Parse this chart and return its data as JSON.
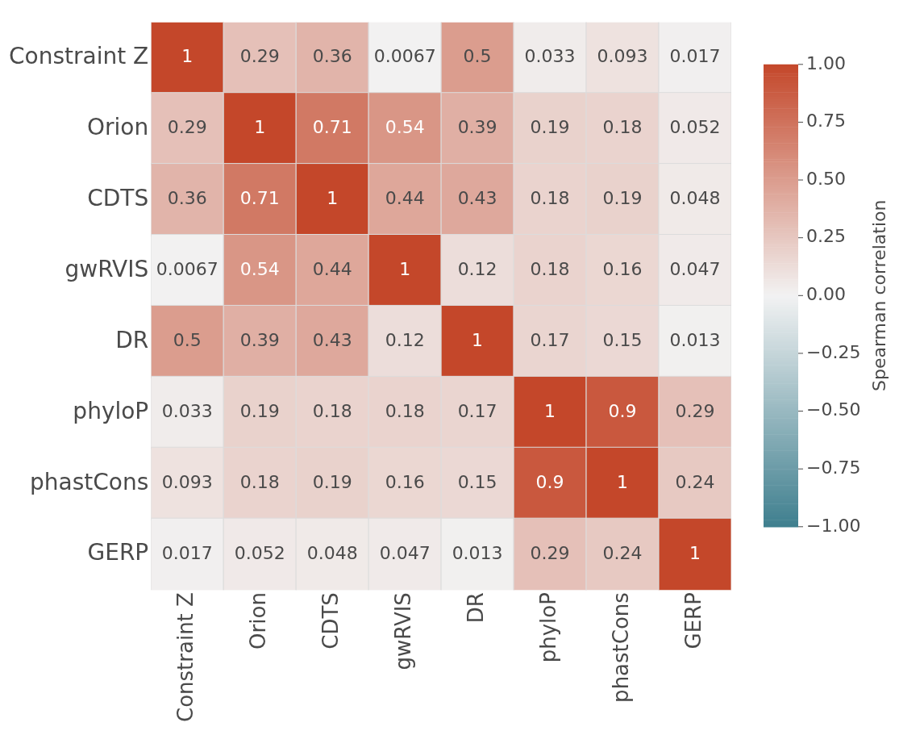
{
  "chart_data": {
    "type": "heatmap",
    "categories": [
      "Constraint Z",
      "Orion",
      "CDTS",
      "gwRVIS",
      "DR",
      "phyloP",
      "phastCons",
      "GERP"
    ],
    "y_categories": [
      "Constraint Z",
      "Orion",
      "CDTS",
      "gwRVIS",
      "DR",
      "phyloP",
      "phastCons",
      "GERP"
    ],
    "cells": [
      [
        1,
        0.29,
        0.36,
        0.0067,
        0.5,
        0.033,
        0.093,
        0.017
      ],
      [
        0.29,
        1,
        0.71,
        0.54,
        0.39,
        0.19,
        0.18,
        0.052
      ],
      [
        0.36,
        0.71,
        1,
        0.44,
        0.43,
        0.18,
        0.19,
        0.048
      ],
      [
        0.0067,
        0.54,
        0.44,
        1,
        0.12,
        0.18,
        0.16,
        0.047
      ],
      [
        0.5,
        0.39,
        0.43,
        0.12,
        1,
        0.17,
        0.15,
        0.013
      ],
      [
        0.033,
        0.19,
        0.18,
        0.18,
        0.17,
        1,
        0.9,
        0.29
      ],
      [
        0.093,
        0.18,
        0.19,
        0.16,
        0.15,
        0.9,
        1,
        0.24
      ],
      [
        0.017,
        0.052,
        0.048,
        0.047,
        0.013,
        0.29,
        0.24,
        1
      ]
    ],
    "data_labels": true,
    "clim": [
      -1,
      1
    ],
    "cticks": [
      {
        "value": 1,
        "label": "1.00"
      },
      {
        "value": 0.75,
        "label": "0.75"
      },
      {
        "value": 0.5,
        "label": "0.50"
      },
      {
        "value": 0.25,
        "label": "0.25"
      },
      {
        "value": 0,
        "label": "0.00"
      },
      {
        "value": -0.25,
        "label": "−0.25"
      },
      {
        "value": -0.5,
        "label": "−0.50"
      },
      {
        "value": -0.75,
        "label": "−0.75"
      },
      {
        "value": -1,
        "label": "−1.00"
      }
    ],
    "clabel": "Spearman correlation"
  }
}
